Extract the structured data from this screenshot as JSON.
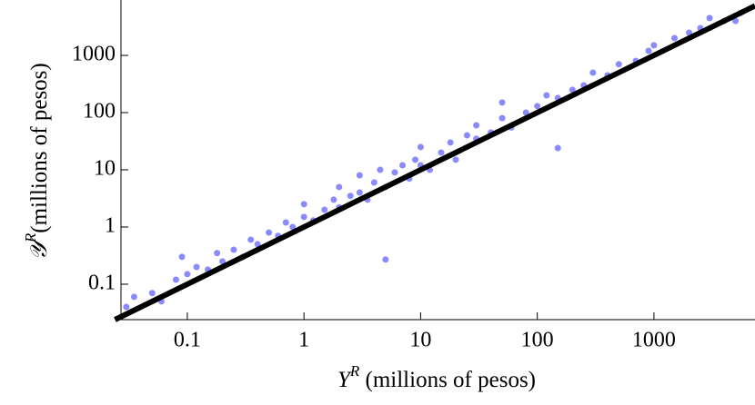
{
  "chart_data": {
    "type": "scatter",
    "xlabel": {
      "main": "Y",
      "sup": "R",
      "rest": " (millions of pesos)"
    },
    "ylabel": {
      "main": "𝒴",
      "sup": "R",
      "rest": "(millions of pesos)"
    },
    "xscale": "log",
    "yscale": "log",
    "xlim": [
      0.027,
      7350
    ],
    "ylim": [
      0.024,
      9300
    ],
    "xticks": [
      0.1,
      1,
      10,
      100,
      1000
    ],
    "yticks": [
      0.1,
      1,
      10,
      100,
      1000
    ],
    "series": [
      {
        "name": "data",
        "color": "#4b4bff",
        "x": [
          0.03,
          0.035,
          0.05,
          0.06,
          0.08,
          0.09,
          0.1,
          0.12,
          0.15,
          0.18,
          0.2,
          0.25,
          0.3,
          0.35,
          0.4,
          0.5,
          0.6,
          0.7,
          0.8,
          1,
          1,
          1.2,
          1.5,
          1.8,
          2,
          2,
          2.5,
          3,
          3,
          3.5,
          4,
          4.5,
          5,
          5,
          6,
          7,
          8,
          9,
          10,
          10,
          12,
          15,
          18,
          20,
          25,
          30,
          30,
          40,
          50,
          50,
          60,
          80,
          100,
          120,
          150,
          150,
          200,
          250,
          300,
          400,
          500,
          700,
          900,
          1000,
          1500,
          2000,
          2500,
          3000,
          4000,
          5000,
          5500
        ],
        "values": [
          0.04,
          0.06,
          0.07,
          0.05,
          0.12,
          0.3,
          0.15,
          0.2,
          0.18,
          0.35,
          0.25,
          0.4,
          0.3,
          0.6,
          0.5,
          0.8,
          0.7,
          1.2,
          1.0,
          1.5,
          2.5,
          1.3,
          2,
          3,
          2.2,
          5,
          3.5,
          4,
          8,
          3,
          6,
          10,
          5,
          0.27,
          9,
          12,
          7,
          15,
          12,
          25,
          10,
          20,
          30,
          15,
          40,
          35,
          60,
          45,
          80,
          150,
          55,
          100,
          130,
          200,
          24,
          180,
          250,
          300,
          500,
          450,
          700,
          800,
          1200,
          1500,
          2000,
          2500,
          3000,
          4500,
          4000,
          4000,
          5500
        ]
      },
      {
        "name": "fit",
        "type": "line",
        "color": "#000000",
        "x": [
          0.024,
          7350
        ],
        "values": [
          0.024,
          7350
        ]
      }
    ]
  }
}
